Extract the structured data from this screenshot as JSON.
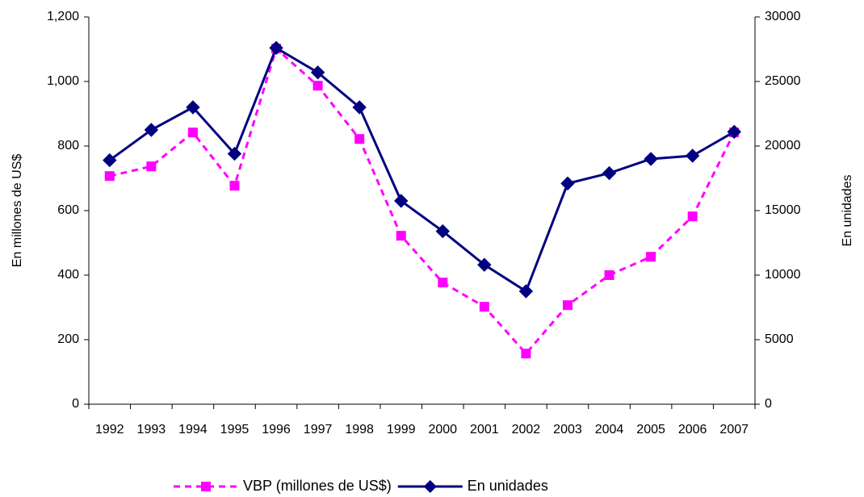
{
  "chart_data": {
    "type": "line",
    "categories": [
      "1992",
      "1993",
      "1994",
      "1995",
      "1996",
      "1997",
      "1998",
      "1999",
      "2000",
      "2001",
      "2002",
      "2003",
      "2004",
      "2005",
      "2006",
      "2007"
    ],
    "series": [
      {
        "name": "VBP (millones de US$)",
        "color": "#ff00ff",
        "dashed": true,
        "marker": "square",
        "values": [
          707,
          737,
          842,
          677,
          1102,
          987,
          822,
          522,
          377,
          302,
          157,
          307,
          400,
          457,
          582,
          842
        ]
      },
      {
        "name": "En unidades",
        "color": "#000080",
        "dashed": false,
        "marker": "diamond",
        "axis": "y2",
        "values": [
          18900,
          21250,
          23000,
          19400,
          27600,
          25700,
          23000,
          15750,
          13400,
          10800,
          8750,
          17100,
          17900,
          19000,
          19250,
          21100
        ]
      }
    ],
    "ylabel": "En millones de US$",
    "y2label": "En unidades",
    "ylim": [
      0,
      1200
    ],
    "yticks": [
      0,
      200,
      400,
      600,
      800,
      {
        "value": 1000,
        "label": "1,000"
      },
      {
        "value": 1200,
        "label": "1,200"
      }
    ],
    "y2lim": [
      0,
      30000
    ],
    "y2ticks": [
      0,
      5000,
      10000,
      15000,
      20000,
      25000,
      30000
    ],
    "legend": "bottom",
    "grid": false
  }
}
